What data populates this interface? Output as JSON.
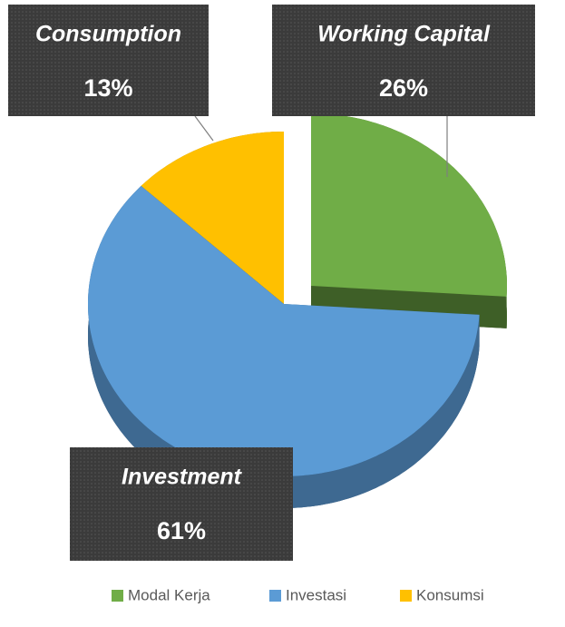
{
  "chart_data": {
    "type": "pie3d",
    "categories": [
      "Modal Kerja",
      "Investasi",
      "Konsumsi"
    ],
    "values": [
      26,
      61,
      13
    ],
    "value_labels": [
      "26%",
      "61%",
      "13%"
    ],
    "data_label_names": [
      "Working Capital",
      "Investment",
      "Consumption"
    ],
    "colors": [
      "#70ad47",
      "#5b9bd5",
      "#ffc000"
    ],
    "exploded": [
      true,
      false,
      false
    ],
    "legend": "bottom"
  }
}
